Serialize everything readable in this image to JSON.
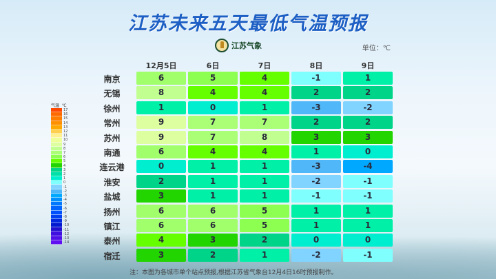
{
  "title": "江苏未来五天最低气温预报",
  "logo_text": "江苏气象",
  "unit": "单位：℃",
  "dates": [
    "12月5日",
    "6日",
    "7日",
    "8日",
    "9日"
  ],
  "rows": [
    {
      "city": "南京",
      "values": [
        6,
        5,
        4,
        -1,
        1
      ]
    },
    {
      "city": "无锡",
      "values": [
        8,
        4,
        4,
        2,
        2
      ]
    },
    {
      "city": "徐州",
      "values": [
        1,
        0,
        1,
        -3,
        -2
      ]
    },
    {
      "city": "常州",
      "values": [
        9,
        7,
        7,
        2,
        2
      ]
    },
    {
      "city": "苏州",
      "values": [
        9,
        7,
        8,
        3,
        3
      ]
    },
    {
      "city": "南通",
      "values": [
        6,
        4,
        4,
        1,
        0
      ]
    },
    {
      "city": "连云港",
      "values": [
        0,
        1,
        1,
        -3,
        -4
      ]
    },
    {
      "city": "淮安",
      "values": [
        2,
        1,
        1,
        -2,
        -1
      ]
    },
    {
      "city": "盐城",
      "values": [
        3,
        1,
        1,
        -1,
        -1
      ]
    },
    {
      "city": "扬州",
      "values": [
        6,
        6,
        5,
        1,
        1
      ]
    },
    {
      "city": "镇江",
      "values": [
        6,
        6,
        5,
        1,
        1
      ]
    },
    {
      "city": "泰州",
      "values": [
        4,
        3,
        2,
        0,
        0
      ]
    },
    {
      "city": "宿迁",
      "values": [
        3,
        2,
        1,
        -2,
        -1
      ]
    }
  ],
  "legend": {
    "title": "气温",
    "unit": "℃",
    "ticks": [
      17,
      16,
      15,
      14,
      13,
      12,
      11,
      10,
      9,
      8,
      7,
      6,
      5,
      4,
      3,
      2,
      1,
      0,
      -1,
      -2,
      -3,
      -4,
      -5,
      -6,
      -7,
      -8,
      -9,
      -10,
      -11,
      -12,
      -13,
      -14
    ]
  },
  "colors": {
    "9": "#ddffa0",
    "8": "#c0ff90",
    "7": "#aaff77",
    "6": "#a0ff6a",
    "5": "#8cff50",
    "4": "#66ff00",
    "3": "#22d400",
    "2": "#00d488",
    "1": "#00f0a8",
    "0": "#00eed0",
    "-1": "#80ffff",
    "-2": "#80d4ff",
    "-3": "#50b8f8",
    "-4": "#00a8ff"
  },
  "legend_colors": [
    "#ff4a00",
    "#ff6a00",
    "#ff7e00",
    "#ff9000",
    "#ffa800",
    "#ffd050",
    "#fff090",
    "#eeff9a",
    "#ddffa0",
    "#c0ff90",
    "#aaff77",
    "#8cff50",
    "#66ff00",
    "#22d400",
    "#00d488",
    "#00e0a8",
    "#00eed0",
    "#80ffff",
    "#80d4ff",
    "#50b8f8",
    "#00a8ff",
    "#0090ff",
    "#0078ff",
    "#0064ff",
    "#0050ff",
    "#0040f0",
    "#0028e0",
    "#0018d0",
    "#2010d0",
    "#4010e0",
    "#5010e8",
    "#6010f0"
  ],
  "note": "注：本图为各城市单个站点预报,根据江苏省气象台12月4日16时预报制作。"
}
